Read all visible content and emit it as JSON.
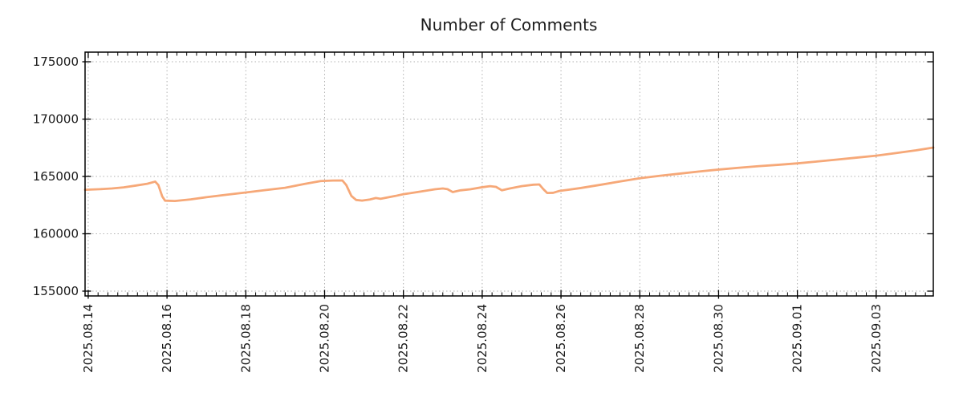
{
  "chart_data": {
    "type": "line",
    "title": "Number of Comments",
    "xlabel": "",
    "ylabel": "",
    "x_unit": "days since 2025-08-14 00:00",
    "xlim_days": [
      -0.08,
      21.45
    ],
    "ylim": [
      154580,
      175840
    ],
    "y_ticks": [
      155000,
      160000,
      165000,
      170000,
      175000
    ],
    "y_tick_labels": [
      "155000",
      "160000",
      "165000",
      "170000",
      "175000"
    ],
    "x_tick_days": [
      0,
      2,
      4,
      6,
      8,
      10,
      12,
      14,
      16,
      18,
      20
    ],
    "x_tick_labels": [
      "2025.08.14",
      "2025.08.16",
      "2025.08.18",
      "2025.08.20",
      "2025.08.22",
      "2025.08.24",
      "2025.08.26",
      "2025.08.28",
      "2025.08.30",
      "2025.09.01",
      "2025.09.03"
    ],
    "x_minor_tick_interval_days": 0.25,
    "grid": true,
    "legend": "none",
    "colors": {
      "line": "#f6a878",
      "grid": "#b0b0b0",
      "axis": "#000000",
      "text": "#1a1a1a",
      "background": "#ffffff"
    },
    "series": [
      {
        "name": "Number of Comments",
        "color": "#f6a878",
        "points": [
          [
            -0.08,
            163840
          ],
          [
            0.3,
            163890
          ],
          [
            0.6,
            163950
          ],
          [
            0.9,
            164050
          ],
          [
            1.2,
            164200
          ],
          [
            1.5,
            164360
          ],
          [
            1.7,
            164550
          ],
          [
            1.78,
            164250
          ],
          [
            1.88,
            163250
          ],
          [
            1.95,
            162890
          ],
          [
            2.2,
            162860
          ],
          [
            2.6,
            163000
          ],
          [
            3.0,
            163190
          ],
          [
            3.5,
            163400
          ],
          [
            4.0,
            163600
          ],
          [
            4.5,
            163810
          ],
          [
            5.0,
            164010
          ],
          [
            5.5,
            164350
          ],
          [
            5.9,
            164600
          ],
          [
            6.2,
            164640
          ],
          [
            6.45,
            164650
          ],
          [
            6.55,
            164250
          ],
          [
            6.68,
            163300
          ],
          [
            6.8,
            162950
          ],
          [
            6.95,
            162890
          ],
          [
            7.15,
            162990
          ],
          [
            7.3,
            163120
          ],
          [
            7.42,
            163050
          ],
          [
            7.55,
            163140
          ],
          [
            7.8,
            163300
          ],
          [
            8.0,
            163450
          ],
          [
            8.4,
            163660
          ],
          [
            8.8,
            163880
          ],
          [
            9.0,
            163950
          ],
          [
            9.12,
            163890
          ],
          [
            9.25,
            163640
          ],
          [
            9.45,
            163790
          ],
          [
            9.7,
            163880
          ],
          [
            10.0,
            164060
          ],
          [
            10.2,
            164150
          ],
          [
            10.35,
            164090
          ],
          [
            10.5,
            163790
          ],
          [
            10.7,
            163950
          ],
          [
            11.0,
            164150
          ],
          [
            11.3,
            164280
          ],
          [
            11.45,
            164300
          ],
          [
            11.55,
            163900
          ],
          [
            11.65,
            163560
          ],
          [
            11.8,
            163570
          ],
          [
            11.95,
            163730
          ],
          [
            12.2,
            163850
          ],
          [
            12.5,
            163990
          ],
          [
            13.0,
            164270
          ],
          [
            13.5,
            164560
          ],
          [
            14.0,
            164840
          ],
          [
            14.5,
            165050
          ],
          [
            15.0,
            165240
          ],
          [
            15.5,
            165430
          ],
          [
            16.0,
            165600
          ],
          [
            16.5,
            165750
          ],
          [
            17.0,
            165890
          ],
          [
            17.5,
            166010
          ],
          [
            18.0,
            166140
          ],
          [
            18.5,
            166300
          ],
          [
            19.0,
            166470
          ],
          [
            19.5,
            166640
          ],
          [
            20.0,
            166810
          ],
          [
            20.5,
            167040
          ],
          [
            21.0,
            167270
          ],
          [
            21.45,
            167520
          ]
        ]
      }
    ]
  }
}
